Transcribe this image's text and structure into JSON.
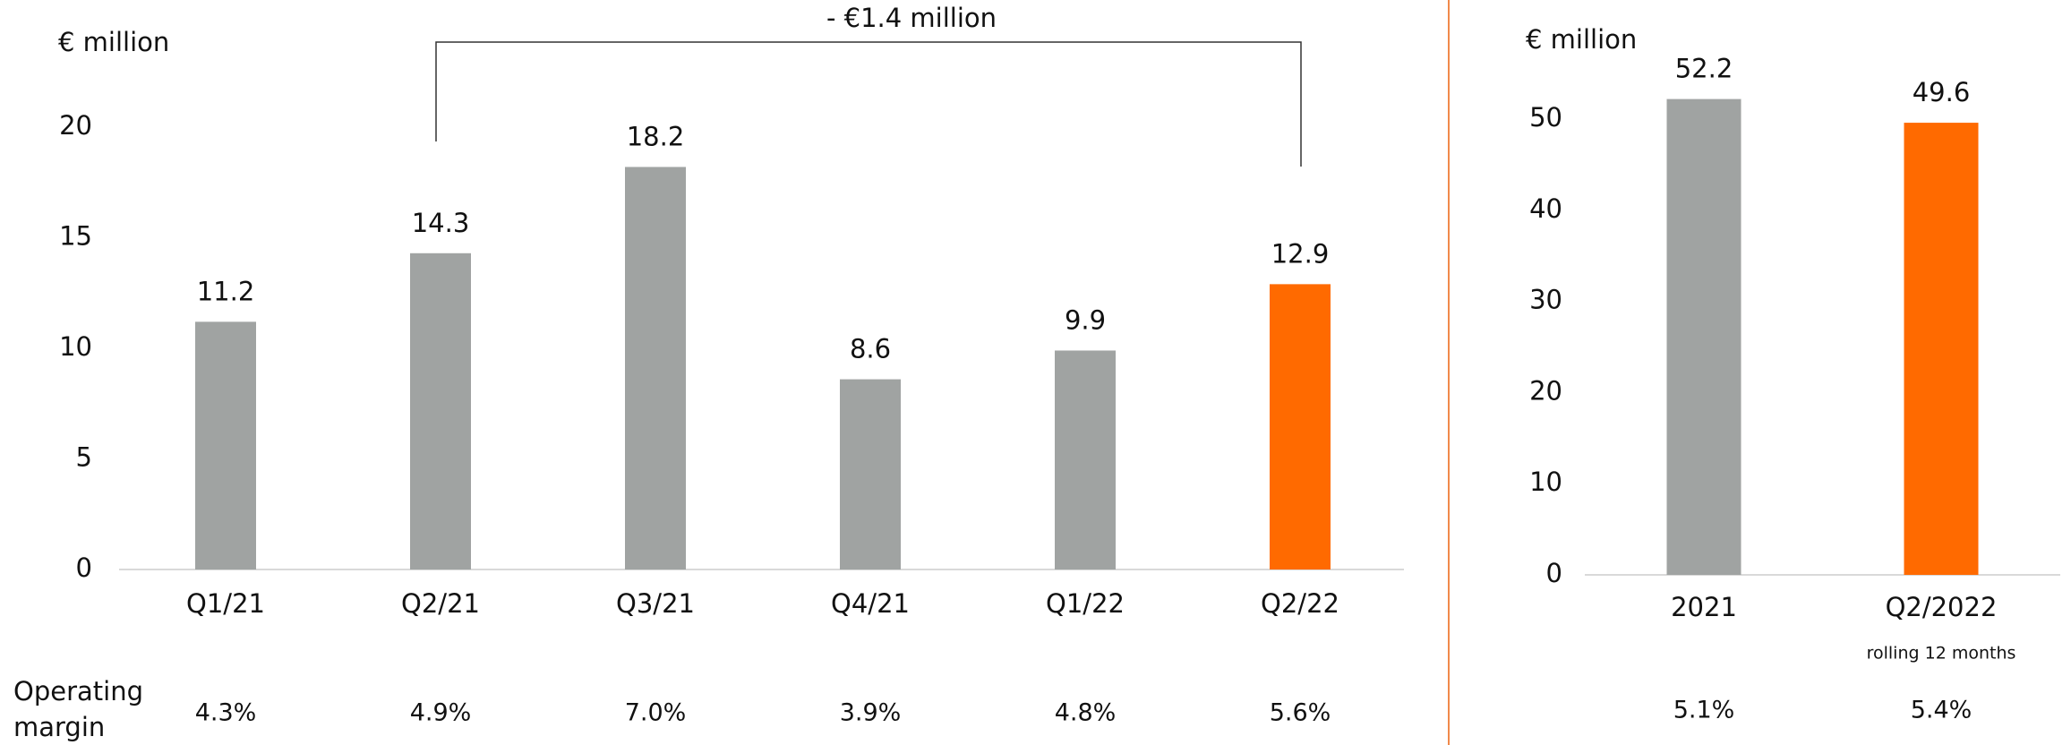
{
  "chart_data": [
    {
      "type": "bar",
      "axis_label": "€ million",
      "annotation": "- €1.4 million",
      "categories": [
        "Q1/21",
        "Q2/21",
        "Q3/21",
        "Q4/21",
        "Q1/22",
        "Q2/22"
      ],
      "values": [
        11.2,
        14.3,
        18.2,
        8.6,
        9.9,
        12.9
      ],
      "colors": [
        "#a0a3a2",
        "#a0a3a2",
        "#a0a3a2",
        "#a0a3a2",
        "#a0a3a2",
        "#ff6a00"
      ],
      "ylim": [
        0,
        20
      ],
      "yticks": [
        0,
        5,
        10,
        15,
        20
      ],
      "margin_label": "Operating margin",
      "margins": [
        "4.3%",
        "4.9%",
        "7.0%",
        "3.9%",
        "4.8%",
        "5.6%"
      ]
    },
    {
      "type": "bar",
      "axis_label": "€ million",
      "categories": [
        "2021",
        "Q2/2022"
      ],
      "category_note": "rolling 12 months",
      "values": [
        52.2,
        49.6
      ],
      "colors": [
        "#a0a3a2",
        "#ff6a00"
      ],
      "ylim": [
        0,
        50
      ],
      "yticks": [
        0,
        10,
        20,
        30,
        40,
        50
      ],
      "margins": [
        "5.1%",
        "5.4%"
      ]
    }
  ]
}
